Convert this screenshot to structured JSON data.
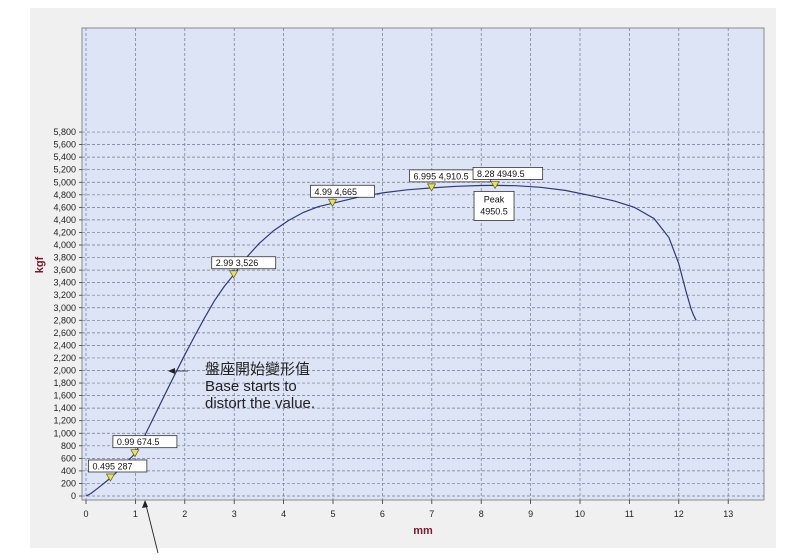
{
  "chart_data": {
    "type": "line",
    "xlabel": "mm",
    "ylabel": "kgf",
    "xlim": [
      0,
      13
    ],
    "ylim": [
      0,
      5800
    ],
    "x_ticks": [
      "0",
      "1",
      "2",
      "3",
      "4",
      "5",
      "6",
      "7",
      "8",
      "9",
      "10",
      "11",
      "12",
      "13"
    ],
    "y_ticks": [
      "0",
      "200",
      "400",
      "600",
      "800",
      "1,000",
      "1,200",
      "1,400",
      "1,600",
      "1,800",
      "2,000",
      "2,200",
      "2,400",
      "2,600",
      "2,800",
      "3,000",
      "3,200",
      "3,400",
      "3,600",
      "3,800",
      "4,000",
      "4,200",
      "4,400",
      "4,600",
      "4,800",
      "5,000",
      "5,200",
      "5,400",
      "5,600",
      "5,800"
    ],
    "grid": true,
    "colors": {
      "plot_bg": "#dde4f5",
      "line": "#2e3a7a",
      "grid": "#6f7894",
      "marker": "#e6e64a",
      "label_text": "#7a1a2a",
      "outer_bg": "#f0f0f0"
    },
    "series": [
      {
        "x": [
          0,
          0.1,
          0.25,
          0.495,
          0.75,
          0.99,
          1.2,
          1.4,
          1.6,
          1.8,
          2.0,
          2.2,
          2.4,
          2.6,
          2.8,
          2.99,
          3.2,
          3.5,
          3.8,
          4.1,
          4.4,
          4.7,
          4.99,
          5.5,
          6.0,
          6.5,
          6.995,
          7.5,
          8.0,
          8.28,
          8.7,
          9.2,
          9.7,
          10.2,
          10.7,
          11.1,
          11.5,
          11.8,
          12.0,
          12.15,
          12.25,
          12.3,
          12.35
        ],
        "y": [
          0,
          40,
          130,
          287,
          480,
          674.5,
          980,
          1300,
          1620,
          1940,
          2250,
          2550,
          2840,
          3110,
          3340,
          3526,
          3760,
          4020,
          4230,
          4390,
          4520,
          4610,
          4665,
          4760,
          4830,
          4880,
          4910.5,
          4935,
          4948,
          4949.5,
          4945,
          4920,
          4870,
          4790,
          4700,
          4600,
          4420,
          4120,
          3700,
          3250,
          2980,
          2880,
          2800
        ]
      }
    ],
    "point_labels": [
      {
        "x": 0.495,
        "y": 287,
        "text": "0.495 287"
      },
      {
        "x": 0.99,
        "y": 674.5,
        "text": "0.99 674.5"
      },
      {
        "x": 2.99,
        "y": 3526,
        "text": "2.99 3,526"
      },
      {
        "x": 4.99,
        "y": 4665,
        "text": "4.99 4,665"
      },
      {
        "x": 6.995,
        "y": 4910.5,
        "text": "6.995 4,910.5"
      },
      {
        "x": 8.28,
        "y": 4949.5,
        "text": "8.28 4949.5"
      }
    ],
    "peak_label": [
      "Peak",
      "4950.5"
    ],
    "annotation": {
      "lines": [
        "盤座開始變形值",
        "Base starts to",
        "distort the value."
      ]
    }
  }
}
